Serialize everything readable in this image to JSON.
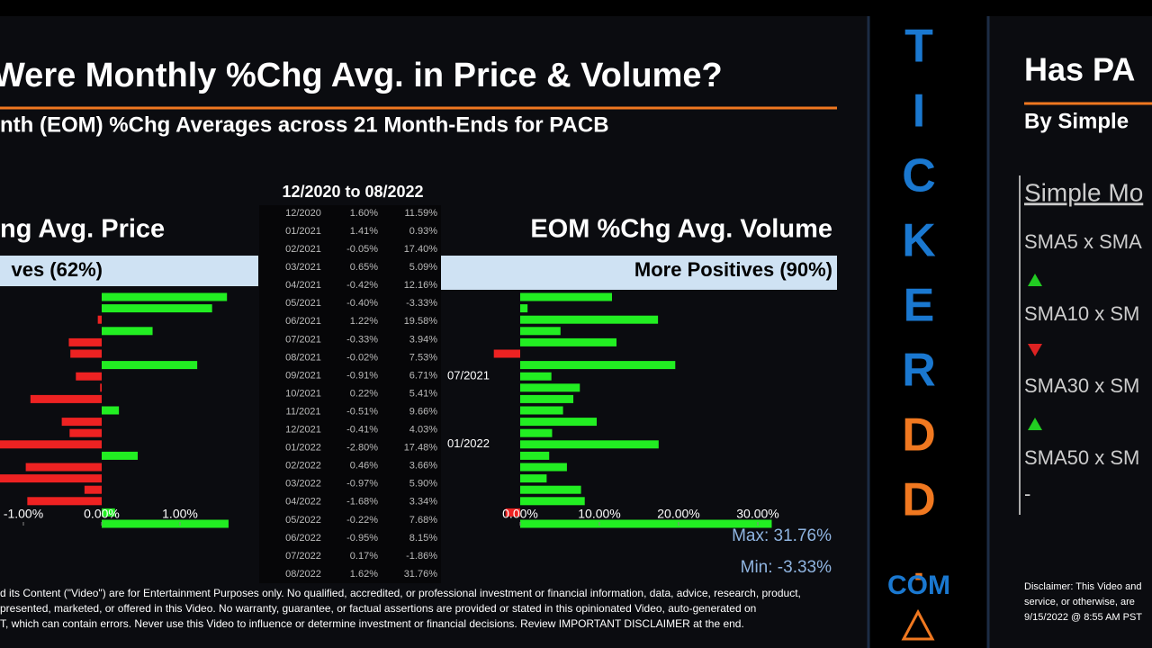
{
  "header": {
    "title": "Were Monthly %Chg Avg. in Price & Volume?",
    "subtitle": "nth (EOM) %Chg Averages across 21 Month-Ends for PACB"
  },
  "table": {
    "title": "12/2020 to 08/2022"
  },
  "chart_data": [
    {
      "type": "bar",
      "orientation": "horizontal",
      "title": "ng Avg. Price",
      "banner": "ves (62%)",
      "categories": [
        "12/2020",
        "01/2021",
        "02/2021",
        "03/2021",
        "04/2021",
        "05/2021",
        "06/2021",
        "07/2021",
        "08/2021",
        "09/2021",
        "10/2021",
        "11/2021",
        "12/2021",
        "01/2022",
        "02/2022",
        "03/2022",
        "04/2022",
        "05/2022",
        "06/2022",
        "07/2022",
        "08/2022"
      ],
      "values": [
        1.6,
        1.41,
        -0.05,
        0.65,
        -0.42,
        -0.4,
        1.22,
        -0.33,
        -0.02,
        -0.91,
        0.22,
        -0.51,
        -0.41,
        -2.8,
        0.46,
        -0.97,
        -1.68,
        -0.22,
        -0.95,
        0.17,
        1.62
      ],
      "value_labels": [
        "1.60%",
        "1.41%",
        "-0.05%",
        "0.65%",
        "-0.42%",
        "-0.40%",
        "1.22%",
        "-0.33%",
        "-0.02%",
        "-0.91%",
        "0.22%",
        "-0.51%",
        "-0.41%",
        "-2.80%",
        "0.46%",
        "-0.97%",
        "-1.68%",
        "-0.22%",
        "-0.95%",
        "0.17%",
        "1.62%"
      ],
      "xlim": [
        -1.3,
        2.0
      ],
      "xticks": [
        {
          "value": -1,
          "label": "-1.00%"
        },
        {
          "value": 0,
          "label": "0.00%"
        },
        {
          "value": 1,
          "label": "1.00%"
        }
      ],
      "colors": {
        "positive": "#22ee22",
        "negative": "#ee2222"
      }
    },
    {
      "type": "bar",
      "orientation": "horizontal",
      "title": "EOM %Chg Avg. Volume",
      "banner": "More Positives (90%)",
      "categories": [
        "12/2020",
        "01/2021",
        "02/2021",
        "03/2021",
        "04/2021",
        "05/2021",
        "06/2021",
        "07/2021",
        "08/2021",
        "09/2021",
        "10/2021",
        "11/2021",
        "12/2021",
        "01/2022",
        "02/2022",
        "03/2022",
        "04/2022",
        "05/2022",
        "06/2022",
        "07/2022",
        "08/2022"
      ],
      "values": [
        11.59,
        0.93,
        17.4,
        5.09,
        12.16,
        -3.33,
        19.58,
        3.94,
        7.53,
        6.71,
        5.41,
        9.66,
        4.03,
        17.48,
        3.66,
        5.9,
        3.34,
        7.68,
        8.15,
        -1.86,
        31.76
      ],
      "value_labels": [
        "11.59%",
        "0.93%",
        "17.40%",
        "5.09%",
        "12.16%",
        "-3.33%",
        "19.58%",
        "3.94%",
        "7.53%",
        "6.71%",
        "5.41%",
        "9.66%",
        "4.03%",
        "17.48%",
        "3.66%",
        "5.90%",
        "3.34%",
        "7.68%",
        "8.15%",
        "-1.86%",
        "31.76%"
      ],
      "xlim": [
        -10,
        40
      ],
      "xticks": [
        {
          "value": 0,
          "label": "0.00%"
        },
        {
          "value": 10,
          "label": "10.00%"
        },
        {
          "value": 20,
          "label": "20.00%"
        },
        {
          "value": 30,
          "label": "30.00%"
        }
      ],
      "shown_category_labels": [
        7,
        13
      ],
      "max_label": "Max: 31.76%",
      "min_label": "Min: -3.33%",
      "colors": {
        "positive": "#22ee22",
        "negative": "#ee2222"
      }
    }
  ],
  "disclaimer": [
    "d its Content (\"Video\") are for Entertainment Purposes only. No qualified, accredited, or professional investment or financial information, data, advice, research, product,",
    "presented, marketed, or offered in this Video. No warranty, guarantee, or factual assertions are provided or stated in this opinionated Video, auto-generated on",
    "T, which can contain errors. Never use this Video to influence or determine investment or financial decisions. Review IMPORTANT DISCLAIMER at the end."
  ],
  "logo": [
    "T",
    "I",
    "C",
    "K",
    "E",
    "R",
    "D",
    "D",
    ".",
    "COM"
  ],
  "right_panel": {
    "title": "Has PA",
    "subtitle": "By Simple",
    "section": "Simple Mo",
    "items": [
      "SMA5 x SMA",
      "SMA10 x SM",
      "SMA30 x SM",
      "SMA50 x SM"
    ],
    "dash": "-",
    "disclaimer": [
      "Disclaimer: This Video and",
      "service, or otherwise, are",
      "9/15/2022 @ 8:55 AM PST"
    ]
  }
}
